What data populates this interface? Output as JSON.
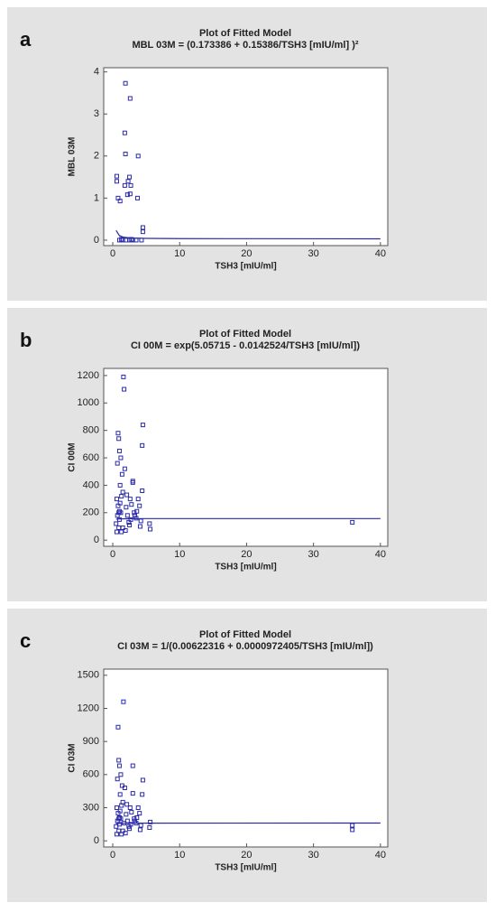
{
  "chart_data": [
    {
      "panel_label": "a",
      "type": "scatter",
      "title": "Plot of Fitted Model",
      "subtitle": "MBL 03M = (0.173386 + 0.15386/TSH3 [mIU/ml] )²",
      "x_label": "TSH3 [mIU/ml]",
      "y_label": "MBL 03M",
      "color": "#2a2aa8",
      "xlim": [
        -1.35,
        41.1
      ],
      "ylim": [
        -0.13,
        4.1
      ],
      "xticks": [
        0,
        10,
        20,
        30,
        40
      ],
      "yticks": [
        0,
        1,
        2,
        3,
        4
      ],
      "points": {
        "x": [
          1.9,
          2.6,
          1.8,
          1.9,
          3.8,
          0.6,
          0.6,
          2.5,
          2.3,
          2.7,
          1.8,
          0.8,
          1.1,
          2.2,
          2.6,
          3.7,
          4.5,
          4.5,
          1,
          1.5,
          2,
          2.5,
          3,
          3.5,
          4.3,
          1.3,
          2.8
        ],
        "y": [
          3.73,
          3.37,
          2.55,
          2.05,
          2.0,
          1.52,
          1.4,
          1.5,
          1.4,
          1.3,
          1.3,
          1.0,
          0.93,
          1.08,
          1.1,
          1.0,
          0.3,
          0.2,
          0,
          0,
          0,
          0,
          0,
          0,
          0,
          0.02,
          0.02
        ]
      },
      "fit_line": {
        "x": [
          0.5,
          1,
          1.5,
          2,
          3,
          5,
          10,
          20,
          40
        ],
        "values": [
          0.231,
          0.107,
          0.076,
          0.063,
          0.05,
          0.042,
          0.036,
          0.035,
          0.031
        ]
      }
    },
    {
      "panel_label": "b",
      "type": "scatter",
      "title": "Plot of Fitted Model",
      "subtitle": "CI 00M = exp(5.05715 - 0.0142524/TSH3 [mIU/ml])",
      "x_label": "TSH3 [mIU/ml]",
      "y_label": "CI 00M",
      "color": "#2a2aa8",
      "xlim": [
        -1.35,
        41.1
      ],
      "ylim": [
        -45,
        1252
      ],
      "xticks": [
        0,
        10,
        20,
        30,
        40
      ],
      "yticks": [
        0,
        200,
        400,
        600,
        800,
        1000,
        1200
      ],
      "points": {
        "x": [
          0.5,
          0.6,
          0.7,
          0.8,
          0.9,
          1.0,
          1.1,
          1.2,
          1.3,
          1.5,
          1.6,
          1.8,
          2.0,
          2.2,
          2.4,
          2.6,
          2.8,
          3.0,
          3.2,
          3.5,
          3.8,
          4.0,
          4.2,
          4.5,
          5.5,
          5.6,
          35.8,
          1.7,
          0.8,
          0.9,
          1.0,
          0.7,
          1.2,
          1.4,
          3.0,
          4.4,
          4.4,
          1.5,
          2.1,
          1.0,
          0.6,
          2.5,
          3.3,
          1.9,
          0.9,
          1.3,
          2.7,
          3.6,
          4.1,
          1.1
        ],
        "y": [
          120,
          300,
          180,
          250,
          90,
          150,
          400,
          200,
          60,
          350,
          1190,
          520,
          240,
          180,
          130,
          300,
          260,
          430,
          200,
          160,
          300,
          250,
          140,
          840,
          120,
          80,
          130,
          1100,
          780,
          740,
          650,
          560,
          600,
          480,
          420,
          690,
          360,
          90,
          330,
          210,
          60,
          110,
          180,
          70,
          200,
          320,
          150,
          210,
          100,
          270
        ]
      },
      "fit_line": {
        "x": [
          0.5,
          1,
          2,
          5,
          40
        ],
        "values": [
          153,
          155,
          156,
          157,
          157
        ]
      }
    },
    {
      "panel_label": "c",
      "type": "scatter",
      "title": "Plot of Fitted Model",
      "subtitle": "CI 03M = 1/(0.00622316 + 0.0000972405/TSH3 [mIU/ml])",
      "x_label": "TSH3 [mIU/ml]",
      "y_label": "CI 03M",
      "color": "#2a2aa8",
      "xlim": [
        -1.35,
        41.1
      ],
      "ylim": [
        -56,
        1556
      ],
      "xticks": [
        0,
        10,
        20,
        30,
        40
      ],
      "yticks": [
        0,
        300,
        600,
        900,
        1200,
        1500
      ],
      "points": {
        "x": [
          0.5,
          0.6,
          0.7,
          0.8,
          0.9,
          1.0,
          1.1,
          1.2,
          1.3,
          1.5,
          1.6,
          1.8,
          2.0,
          2.2,
          2.4,
          2.6,
          2.8,
          3.0,
          3.2,
          3.5,
          3.8,
          4.0,
          4.2,
          4.5,
          5.5,
          5.6,
          35.8,
          35.8,
          1.7,
          0.8,
          0.9,
          1.0,
          0.7,
          1.2,
          1.4,
          3.0,
          4.4,
          1.5,
          2.1,
          1.0,
          0.6,
          2.5,
          3.3,
          1.9,
          0.9,
          1.3,
          2.7,
          3.6,
          4.1,
          1.1
        ],
        "y": [
          130,
          300,
          180,
          250,
          90,
          150,
          420,
          200,
          60,
          350,
          1260,
          480,
          240,
          180,
          130,
          300,
          260,
          680,
          200,
          160,
          300,
          250,
          140,
          550,
          120,
          170,
          140,
          100,
          160,
          1030,
          730,
          680,
          560,
          600,
          500,
          430,
          420,
          90,
          330,
          210,
          60,
          110,
          180,
          70,
          200,
          320,
          150,
          210,
          100,
          270
        ]
      },
      "fit_line": {
        "x": [
          0.5,
          1,
          2,
          40
        ],
        "values": [
          156,
          158,
          160,
          161
        ]
      }
    }
  ]
}
